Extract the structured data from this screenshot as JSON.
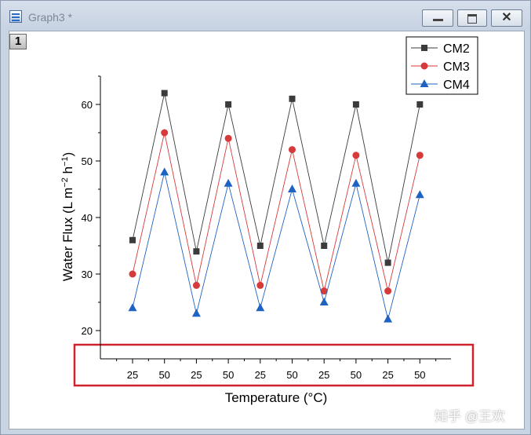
{
  "window": {
    "title": "Graph3 *",
    "close_glyph": "✕"
  },
  "layer": {
    "label": "1"
  },
  "watermark": "知乎 @王欢",
  "colors": {
    "cm2": "#3b3b3b",
    "cm3": "#d63a3a",
    "cm4": "#1f63c2",
    "highlight": "#d0212e"
  },
  "chart_data": {
    "type": "line",
    "title": "",
    "xlabel": "Temperature (°C)",
    "ylabel": "Water Flux (L m⁻² h⁻¹)",
    "categories": [
      "25",
      "50",
      "25",
      "50",
      "25",
      "50",
      "25",
      "50",
      "25",
      "50"
    ],
    "ylim": [
      15,
      65
    ],
    "yticks": [
      20,
      30,
      40,
      50,
      60
    ],
    "legend_position": "top-right",
    "series": [
      {
        "name": "CM2",
        "marker": "square",
        "color": "#3b3b3b",
        "values": [
          36,
          62,
          34,
          60,
          35,
          61,
          35,
          60,
          32,
          60
        ]
      },
      {
        "name": "CM3",
        "marker": "circle",
        "color": "#d63a3a",
        "values": [
          30,
          55,
          28,
          54,
          28,
          52,
          27,
          51,
          27,
          51
        ]
      },
      {
        "name": "CM4",
        "marker": "triangle",
        "color": "#1f63c2",
        "values": [
          24,
          48,
          23,
          46,
          24,
          45,
          25,
          46,
          22,
          44
        ]
      }
    ]
  }
}
